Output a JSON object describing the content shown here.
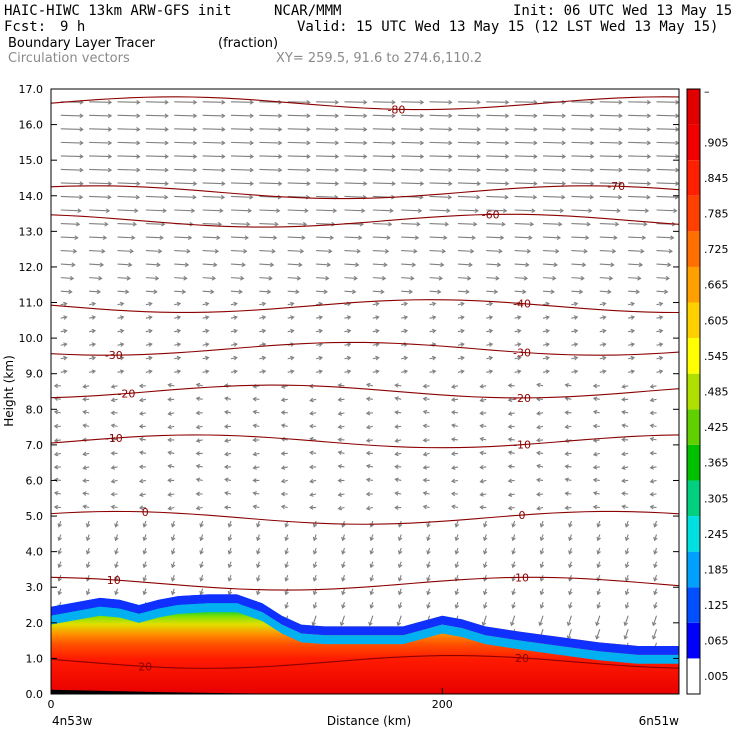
{
  "header": {
    "title": "HAIC-HIWC 13km ARW-GFS init",
    "org": "NCAR/MMM",
    "init": "Init: 06 UTC Wed 13 May 15",
    "fcst_label": "Fcst:",
    "fcst_value": "9 h",
    "valid": "Valid: 15 UTC Wed 13 May 15 (12 LST Wed 13 May 15)",
    "field": "Boundary Layer Tracer",
    "field_units": "(fraction)",
    "vectors": "Circulation vectors",
    "xy": "XY= 259.5, 91.6 to 274.6,110.2"
  },
  "chart_data": {
    "type": "heatmap",
    "ylabel": "Height (km)",
    "xlabel": "Distance (km)",
    "x_left_label": "4n53w",
    "x_right_label": "6n51w",
    "xlim": [
      0,
      321
    ],
    "ylim": [
      0,
      17
    ],
    "x_ticks": [
      {
        "value": 0,
        "label": "0"
      },
      {
        "value": 200,
        "label": "200"
      }
    ],
    "y_ticks": [
      "0.0",
      "1.0",
      "2.0",
      "3.0",
      "4.0",
      "5.0",
      "6.0",
      "7.0",
      "8.0",
      "9.0",
      "10.0",
      "11.0",
      "12.0",
      "13.0",
      "14.0",
      "15.0",
      "16.0",
      "17.0"
    ],
    "tracer_top_profile": [
      [
        0,
        2.45
      ],
      [
        10,
        2.55
      ],
      [
        25,
        2.7
      ],
      [
        35,
        2.65
      ],
      [
        45,
        2.5
      ],
      [
        55,
        2.65
      ],
      [
        65,
        2.75
      ],
      [
        80,
        2.8
      ],
      [
        95,
        2.8
      ],
      [
        108,
        2.55
      ],
      [
        118,
        2.2
      ],
      [
        128,
        1.95
      ],
      [
        140,
        1.9
      ],
      [
        160,
        1.9
      ],
      [
        180,
        1.9
      ],
      [
        190,
        2.05
      ],
      [
        200,
        2.2
      ],
      [
        210,
        2.1
      ],
      [
        222,
        1.9
      ],
      [
        240,
        1.75
      ],
      [
        260,
        1.6
      ],
      [
        280,
        1.45
      ],
      [
        300,
        1.35
      ],
      [
        321,
        1.35
      ]
    ],
    "temperature_contours": [
      {
        "label": "-80",
        "height": 16.6
      },
      {
        "label": "-70",
        "height": 14.1
      },
      {
        "label": "-60",
        "height": 13.3
      },
      {
        "label": "-40",
        "height": 10.9
      },
      {
        "label": "-30",
        "height": 9.7
      },
      {
        "label": "-20",
        "height": 8.5
      },
      {
        "label": "-10",
        "height": 7.1
      },
      {
        "label": "0",
        "height": 4.95
      },
      {
        "label": "10",
        "height": 3.1
      },
      {
        "label": "20",
        "height": 0.9
      }
    ],
    "colorbar_labels": [
      ".005",
      ".065",
      ".125",
      ".185",
      ".245",
      ".305",
      ".365",
      ".425",
      ".485",
      ".545",
      ".605",
      ".665",
      ".725",
      ".785",
      ".845",
      ".905"
    ],
    "colorbar_top_label": "–"
  },
  "colors": {
    "contour": "#8b0000",
    "vector": "#808080"
  }
}
